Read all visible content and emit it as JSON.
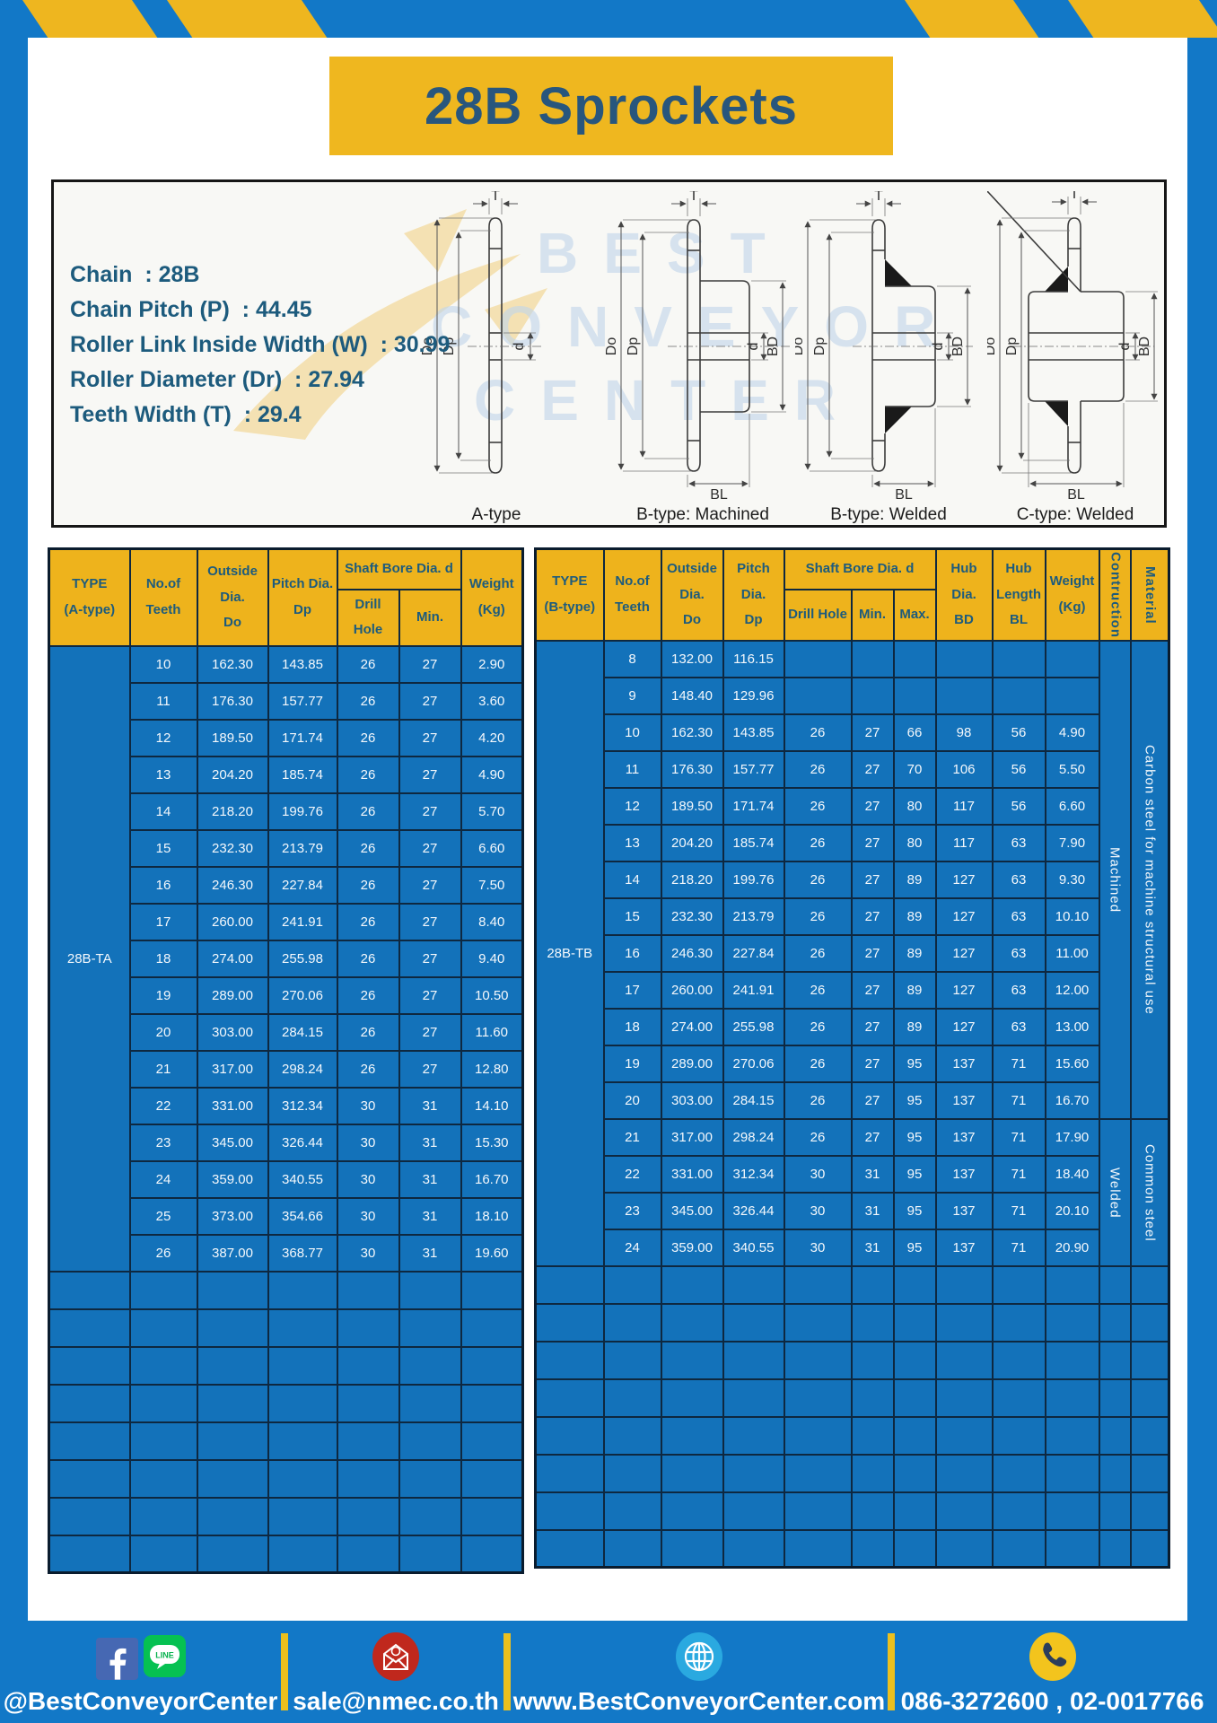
{
  "title": "28B Sprockets",
  "specs": {
    "lines": [
      "Chain  : 28B",
      "Chain Pitch (P)  : 44.45",
      "Roller Link Inside Width (W)  : 30.99",
      "Roller Diameter (Dr)  : 27.94",
      "Teeth Width (T)  : 29.4"
    ]
  },
  "watermark": {
    "lines": [
      "BEST",
      "CONVEYOR",
      "CENTER"
    ]
  },
  "diagrams": {
    "dims": {
      "t": "T",
      "do": "Do",
      "dp": "Dp",
      "d": "d",
      "bd": "BD",
      "bl": "BL"
    },
    "captions": [
      "A-type",
      "B-type: Machined",
      "B-type: Welded",
      "C-type: Welded"
    ]
  },
  "table_a": {
    "headers": {
      "type": [
        "TYPE",
        "(A-type)"
      ],
      "teeth": [
        "No.of",
        "Teeth"
      ],
      "outside": [
        "Outside",
        "Dia.",
        "Do"
      ],
      "pitch": [
        "Pitch Dia.",
        "Dp"
      ],
      "shaft": [
        "Shaft Bore Dia. d"
      ],
      "drill": [
        "Drill Hole"
      ],
      "min": [
        "Min."
      ],
      "weight": [
        "Weight",
        "(Kg)"
      ]
    },
    "type_label": "28B-TA",
    "rows": [
      [
        "10",
        "162.30",
        "143.85",
        "26",
        "27",
        "2.90"
      ],
      [
        "11",
        "176.30",
        "157.77",
        "26",
        "27",
        "3.60"
      ],
      [
        "12",
        "189.50",
        "171.74",
        "26",
        "27",
        "4.20"
      ],
      [
        "13",
        "204.20",
        "185.74",
        "26",
        "27",
        "4.90"
      ],
      [
        "14",
        "218.20",
        "199.76",
        "26",
        "27",
        "5.70"
      ],
      [
        "15",
        "232.30",
        "213.79",
        "26",
        "27",
        "6.60"
      ],
      [
        "16",
        "246.30",
        "227.84",
        "26",
        "27",
        "7.50"
      ],
      [
        "17",
        "260.00",
        "241.91",
        "26",
        "27",
        "8.40"
      ],
      [
        "18",
        "274.00",
        "255.98",
        "26",
        "27",
        "9.40"
      ],
      [
        "19",
        "289.00",
        "270.06",
        "26",
        "27",
        "10.50"
      ],
      [
        "20",
        "303.00",
        "284.15",
        "26",
        "27",
        "11.60"
      ],
      [
        "21",
        "317.00",
        "298.24",
        "26",
        "27",
        "12.80"
      ],
      [
        "22",
        "331.00",
        "312.34",
        "30",
        "31",
        "14.10"
      ],
      [
        "23",
        "345.00",
        "326.44",
        "30",
        "31",
        "15.30"
      ],
      [
        "24",
        "359.00",
        "340.55",
        "30",
        "31",
        "16.70"
      ],
      [
        "25",
        "373.00",
        "354.66",
        "30",
        "31",
        "18.10"
      ],
      [
        "26",
        "387.00",
        "368.77",
        "30",
        "31",
        "19.60"
      ]
    ],
    "empty_rows": 8
  },
  "table_b": {
    "headers": {
      "type": [
        "TYPE",
        "(B-type)"
      ],
      "teeth": [
        "No.of",
        "Teeth"
      ],
      "outside": [
        "Outside",
        "Dia.",
        "Do"
      ],
      "pitch": [
        "Pitch Dia.",
        "Dp"
      ],
      "shaft": [
        "Shaft Bore Dia. d"
      ],
      "drill": [
        "Drill Hole"
      ],
      "min": [
        "Min."
      ],
      "max": [
        "Max."
      ],
      "hub_dia": [
        "Hub Dia.",
        "BD"
      ],
      "hub_len": [
        "Hub",
        "Length",
        "BL"
      ],
      "weight": [
        "Weight",
        "(Kg)"
      ],
      "construction": "Contruction",
      "material": "Material"
    },
    "type_label": "28B-TB",
    "rows": [
      [
        "8",
        "132.00",
        "116.15",
        "",
        "",
        "",
        "",
        "",
        ""
      ],
      [
        "9",
        "148.40",
        "129.96",
        "",
        "",
        "",
        "",
        "",
        ""
      ],
      [
        "10",
        "162.30",
        "143.85",
        "26",
        "27",
        "66",
        "98",
        "56",
        "4.90"
      ],
      [
        "11",
        "176.30",
        "157.77",
        "26",
        "27",
        "70",
        "106",
        "56",
        "5.50"
      ],
      [
        "12",
        "189.50",
        "171.74",
        "26",
        "27",
        "80",
        "117",
        "56",
        "6.60"
      ],
      [
        "13",
        "204.20",
        "185.74",
        "26",
        "27",
        "80",
        "117",
        "63",
        "7.90"
      ],
      [
        "14",
        "218.20",
        "199.76",
        "26",
        "27",
        "89",
        "127",
        "63",
        "9.30"
      ],
      [
        "15",
        "232.30",
        "213.79",
        "26",
        "27",
        "89",
        "127",
        "63",
        "10.10"
      ],
      [
        "16",
        "246.30",
        "227.84",
        "26",
        "27",
        "89",
        "127",
        "63",
        "11.00"
      ],
      [
        "17",
        "260.00",
        "241.91",
        "26",
        "27",
        "89",
        "127",
        "63",
        "12.00"
      ],
      [
        "18",
        "274.00",
        "255.98",
        "26",
        "27",
        "89",
        "127",
        "63",
        "13.00"
      ],
      [
        "19",
        "289.00",
        "270.06",
        "26",
        "27",
        "95",
        "137",
        "71",
        "15.60"
      ],
      [
        "20",
        "303.00",
        "284.15",
        "26",
        "27",
        "95",
        "137",
        "71",
        "16.70"
      ],
      [
        "21",
        "317.00",
        "298.24",
        "26",
        "27",
        "95",
        "137",
        "71",
        "17.90"
      ],
      [
        "22",
        "331.00",
        "312.34",
        "30",
        "31",
        "95",
        "137",
        "71",
        "18.40"
      ],
      [
        "23",
        "345.00",
        "326.44",
        "30",
        "31",
        "95",
        "137",
        "71",
        "20.10"
      ],
      [
        "24",
        "359.00",
        "340.55",
        "30",
        "31",
        "95",
        "137",
        "71",
        "20.90"
      ]
    ],
    "construction_groups": [
      {
        "label": "Machined",
        "span": 13
      },
      {
        "label": "Welded",
        "span": 4
      }
    ],
    "material_groups": [
      {
        "label": "Carbon steel for  machine structural use",
        "span": 13
      },
      {
        "label": "Common steel",
        "span": 4
      }
    ],
    "empty_rows": 8
  },
  "footer": {
    "sections": [
      {
        "icons": [
          "facebook-icon",
          "line-icon"
        ],
        "text": "@BestConveyorCenter"
      },
      {
        "icons": [
          "email-icon"
        ],
        "text": "sale@nmec.co.th"
      },
      {
        "icons": [
          "globe-icon"
        ],
        "text": "www.BestConveyorCenter.com"
      },
      {
        "icons": [
          "phone-icon"
        ],
        "text": "086-3272600 , 02-0017766"
      }
    ],
    "line_badge": "LINE"
  },
  "colors": {
    "page_blue": "#1278c7",
    "cell_blue": "#1372ba",
    "accent_yellow": "#eeb61f",
    "grid_navy": "#0e2840",
    "header_text": "#1d5b7d",
    "title_text": "#28567d"
  }
}
